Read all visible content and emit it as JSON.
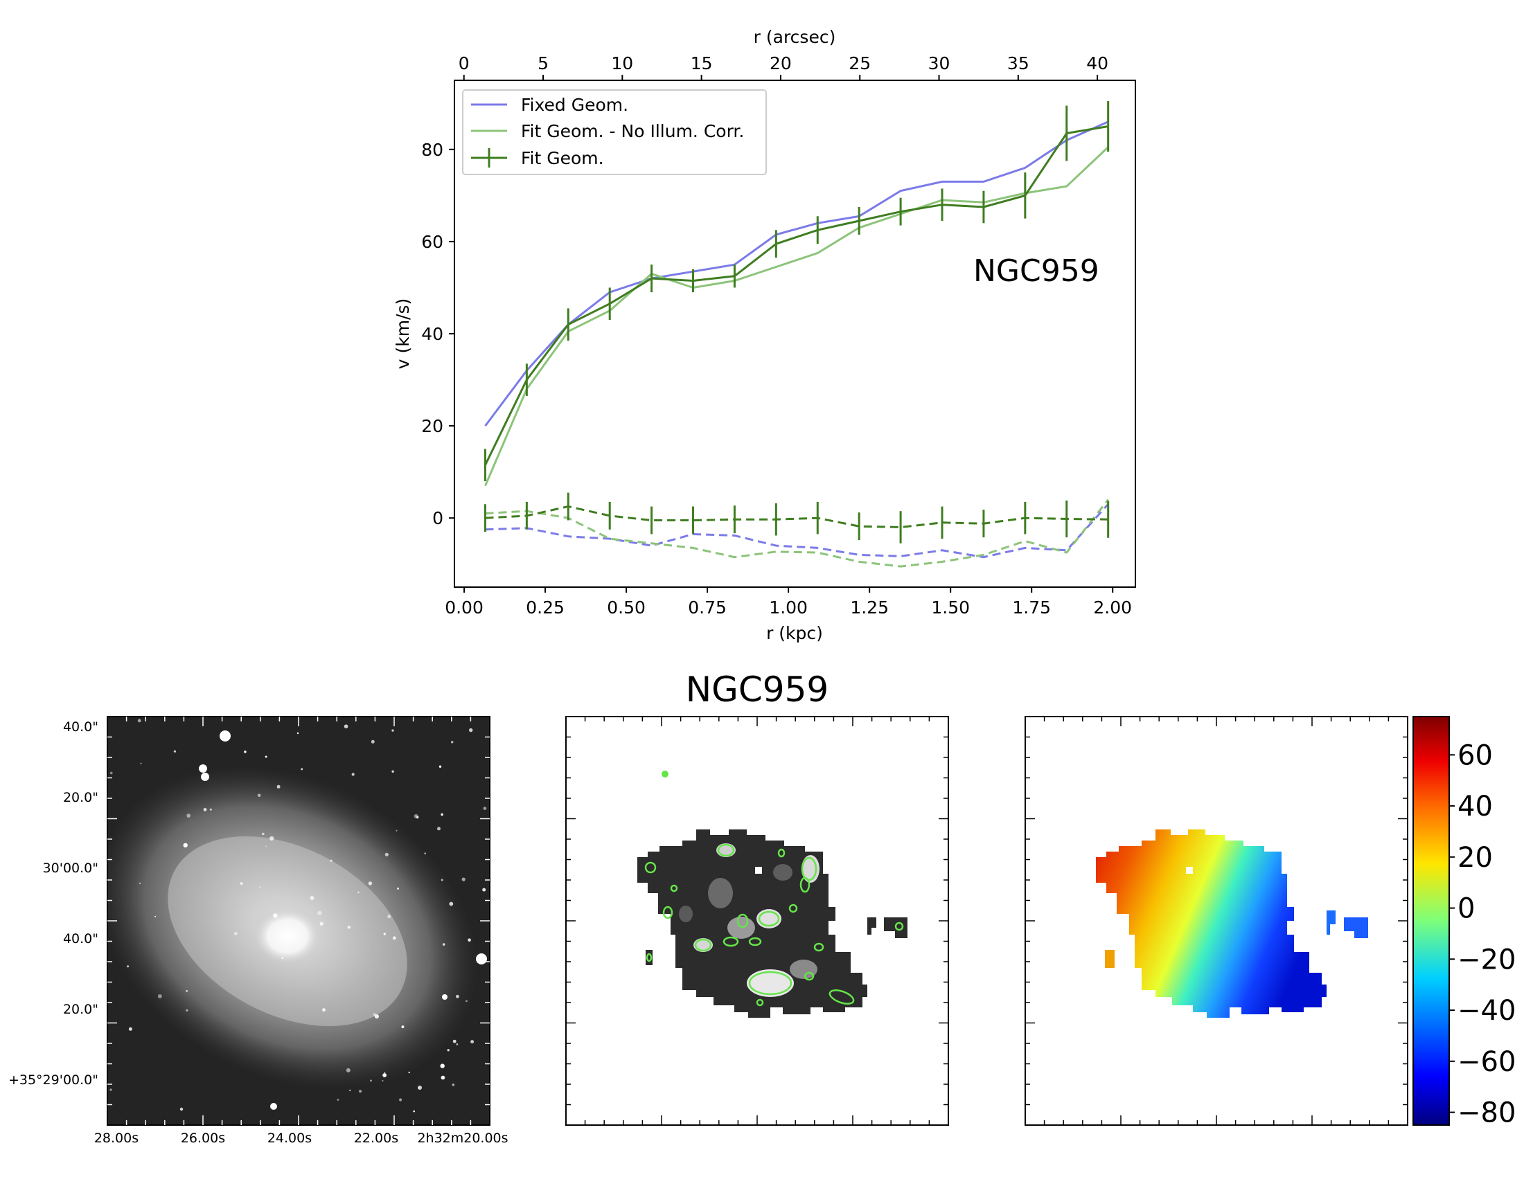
{
  "chart_data": [
    {
      "type": "line",
      "annotation": "NGC959",
      "xlabel": "r (kpc)",
      "ylabel": "v (km/s)",
      "top_xlabel": "r (arcsec)",
      "xlim": [
        -0.03,
        2.07
      ],
      "ylim": [
        -15,
        95
      ],
      "top_xlim": [
        -0.6,
        42.4
      ],
      "xticks": [
        "0.00",
        "0.25",
        "0.50",
        "0.75",
        "1.00",
        "1.25",
        "1.50",
        "1.75",
        "2.00"
      ],
      "yticks": [
        "0",
        "20",
        "40",
        "60",
        "80"
      ],
      "top_xticks": [
        "0",
        "5",
        "10",
        "15",
        "20",
        "25",
        "30",
        "35",
        "40"
      ],
      "legend_position": "top-left",
      "grid": false,
      "x": [
        0.065,
        0.193,
        0.321,
        0.449,
        0.578,
        0.706,
        0.834,
        0.962,
        1.09,
        1.218,
        1.346,
        1.474,
        1.602,
        1.73,
        1.858,
        1.986
      ],
      "series": [
        {
          "name": "Fixed Geom.",
          "color": "#7b7be8",
          "style": "solid",
          "values": [
            20,
            32,
            42,
            49,
            52,
            53.5,
            55,
            61.5,
            64,
            65.5,
            71,
            73,
            73,
            76,
            82,
            86
          ]
        },
        {
          "name": "Fit Geom. - No Illum. Corr.",
          "color": "#8cc47a",
          "style": "solid",
          "values": [
            7,
            28,
            40.5,
            45,
            53,
            50,
            51.5,
            54.5,
            57.5,
            63,
            66,
            69,
            68.5,
            70.5,
            72,
            80.5
          ]
        },
        {
          "name": "Fit Geom.",
          "color": "#3f7d20",
          "style": "solid",
          "errorbars": true,
          "values": [
            11.5,
            30,
            42,
            46.5,
            52,
            51.5,
            52.5,
            59.5,
            62.5,
            64.5,
            66.5,
            68,
            67.5,
            70,
            83.5,
            85
          ],
          "errors": [
            3.5,
            3.5,
            3.5,
            3.5,
            3,
            2.5,
            2.5,
            3,
            3,
            3,
            3,
            3.5,
            3.5,
            5,
            6,
            5.5
          ]
        },
        {
          "name": "",
          "color": "#7b7be8",
          "style": "dashed",
          "values": [
            -2.5,
            -2.2,
            -4,
            -4.5,
            -6,
            -3.5,
            -3.8,
            -6,
            -6.5,
            -8,
            -8.3,
            -7,
            -8.5,
            -6.5,
            -7,
            3
          ]
        },
        {
          "name": "",
          "color": "#8cc47a",
          "style": "dashed",
          "values": [
            1,
            1.5,
            0,
            -4.5,
            -5.5,
            -6.5,
            -8.5,
            -7.3,
            -7.5,
            -9.5,
            -10.5,
            -9.5,
            -8,
            -5,
            -7.5,
            4
          ]
        },
        {
          "name": "",
          "color": "#3f7d20",
          "style": "dashed",
          "errorbars": true,
          "values": [
            0,
            0.5,
            2.5,
            0.5,
            -0.5,
            -0.5,
            -0.3,
            -0.3,
            0,
            -1.8,
            -2,
            -1,
            -1.2,
            0,
            -0.2,
            -0.3
          ],
          "errors": [
            3,
            3,
            3,
            3,
            3,
            3,
            3,
            3.5,
            3.5,
            3,
            3.5,
            3.5,
            3,
            3.5,
            4,
            4
          ]
        }
      ]
    },
    {
      "type": "image",
      "content": "optical grayscale image of galaxy",
      "ytick_labels": [
        "40.0\"",
        "20.0\"",
        "30'00.0\"",
        "40.0\"",
        "20.0\"",
        "+35°29'00.0\""
      ],
      "xtick_labels": [
        "28.00s",
        "26.00s",
        "24.00s",
        "22.00s",
        "2h32m20.00s"
      ]
    },
    {
      "type": "image",
      "title": "NGC959",
      "content": "H-alpha intensity map with green contours"
    },
    {
      "type": "heatmap",
      "content": "velocity field map",
      "colorbar_ticks": [
        "60",
        "40",
        "20",
        "0",
        "−20",
        "−40",
        "−60",
        "−80"
      ],
      "colorbar_range": [
        -85,
        75
      ],
      "colormap": [
        "#00007f",
        "#0000ff",
        "#0080ff",
        "#00ffff",
        "#80ff80",
        "#ffff00",
        "#ff8000",
        "#ff0000",
        "#7f0000"
      ]
    }
  ]
}
